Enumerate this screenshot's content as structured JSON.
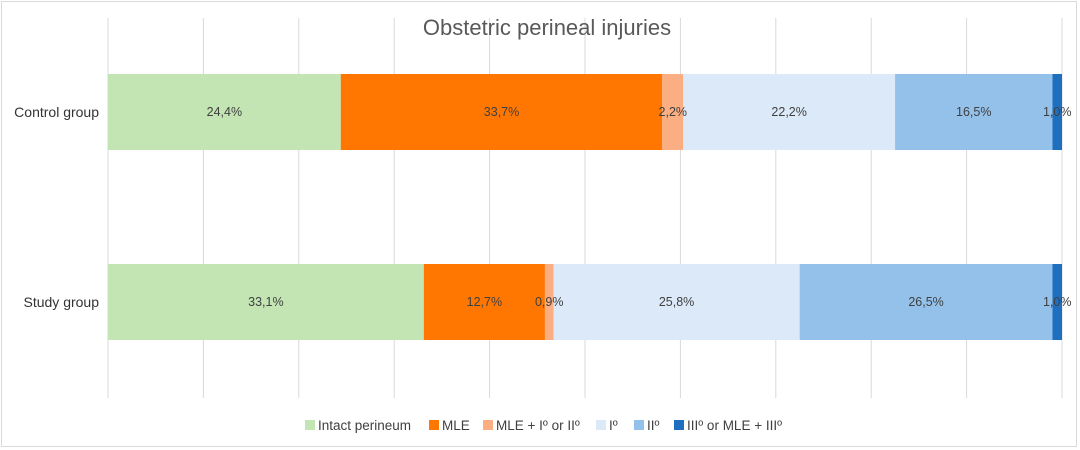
{
  "chart_data": {
    "type": "bar",
    "orientation": "horizontal",
    "stacked": "percent",
    "title": "Obstetric perineal injuries",
    "xlabel": "",
    "ylabel": "",
    "xlim": [
      0,
      100
    ],
    "grid": true,
    "legend_position": "bottom",
    "categories": [
      "Control group",
      "Study group"
    ],
    "series": [
      {
        "name": "Intact perineum",
        "color": "#c2e5b3",
        "values": [
          24.4,
          33.1
        ],
        "labels": [
          "24,4%",
          "33,1%"
        ]
      },
      {
        "name": "MLE",
        "color": "#ff7700",
        "values": [
          33.7,
          12.7
        ],
        "labels": [
          "33,7%",
          "12,7%"
        ]
      },
      {
        "name": "MLE + Iº or IIº",
        "color": "#fbae82",
        "values": [
          2.2,
          0.9
        ],
        "labels": [
          "2,2%",
          "0,9%"
        ]
      },
      {
        "name": "Iº",
        "color": "#dce9f8",
        "values": [
          22.2,
          25.8
        ],
        "labels": [
          "22,2%",
          "25,8%"
        ]
      },
      {
        "name": "IIº",
        "color": "#93c1ea",
        "values": [
          16.5,
          26.5
        ],
        "labels": [
          "16,5%",
          "26,5%"
        ]
      },
      {
        "name": "IIIº or MLE + IIIº",
        "color": "#1f6fc0",
        "values": [
          1.0,
          1.0
        ],
        "labels": [
          "1,0%",
          "1,0%"
        ]
      }
    ]
  }
}
